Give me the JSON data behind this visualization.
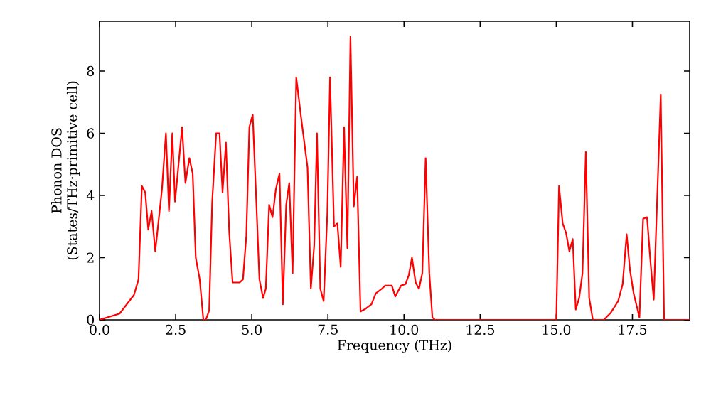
{
  "chart_data": {
    "type": "line",
    "xlabel": "Frequency (THz)",
    "ylabel": "Phonon DOS\n(States/THz·primitive cell)",
    "xlim": [
      0,
      19.38
    ],
    "ylim": [
      0,
      9.6
    ],
    "xticks": [
      {
        "value": 0,
        "label": "0.0"
      },
      2.5,
      {
        "value": 5,
        "label": "5.0"
      },
      7.5,
      {
        "value": 10,
        "label": "10.0"
      },
      12.5,
      {
        "value": 15,
        "label": "15.0"
      },
      17.5
    ],
    "yticks": [
      0,
      2,
      4,
      6,
      8
    ],
    "series": [
      {
        "color": "#ff0000",
        "x": [
          0,
          0.66,
          1.13,
          1.28,
          1.39,
          1.5,
          1.6,
          1.71,
          1.83,
          2.05,
          2.18,
          2.28,
          2.39,
          2.48,
          2.71,
          2.82,
          2.95,
          3.06,
          3.16,
          3.29,
          3.41,
          3.49,
          3.6,
          3.7,
          3.83,
          3.94,
          4.04,
          4.15,
          4.26,
          4.37,
          4.6,
          4.71,
          4.82,
          4.92,
          5.03,
          5.14,
          5.25,
          5.37,
          5.46,
          5.57,
          5.68,
          5.79,
          5.91,
          6.02,
          6.13,
          6.23,
          6.34,
          6.46,
          6.62,
          6.83,
          6.94,
          7.05,
          7.14,
          7.25,
          7.36,
          7.48,
          7.57,
          7.7,
          7.81,
          7.92,
          8.03,
          8.14,
          8.24,
          8.35,
          8.46,
          8.57,
          8.73,
          8.93,
          9.07,
          9.27,
          9.38,
          9.6,
          9.71,
          9.9,
          10.05,
          10.16,
          10.26,
          10.38,
          10.49,
          10.6,
          10.71,
          10.83,
          10.93,
          11.02,
          15.0,
          15.09,
          15.21,
          15.32,
          15.43,
          15.54,
          15.64,
          15.75,
          15.86,
          15.97,
          16.08,
          16.2,
          16.56,
          16.79,
          17.03,
          17.18,
          17.31,
          17.42,
          17.54,
          17.73,
          17.85,
          17.98,
          18.09,
          18.2,
          18.43,
          18.54,
          19.38
        ],
        "values": [
          0,
          0.2,
          0.8,
          1.3,
          4.3,
          4.1,
          2.9,
          3.5,
          2.2,
          4.2,
          6.0,
          3.5,
          6.0,
          3.8,
          6.2,
          4.4,
          5.2,
          4.7,
          2.0,
          1.3,
          0,
          0,
          0.3,
          3.8,
          6.0,
          6.0,
          4.1,
          5.7,
          2.8,
          1.2,
          1.2,
          1.3,
          2.7,
          6.2,
          6.6,
          4.0,
          1.3,
          0.7,
          1.0,
          3.7,
          3.3,
          4.2,
          4.7,
          0.5,
          3.7,
          4.4,
          1.5,
          7.8,
          6.5,
          4.9,
          1.0,
          2.4,
          6.0,
          1.0,
          0.6,
          3.4,
          7.8,
          3.0,
          3.1,
          1.7,
          6.2,
          2.3,
          9.1,
          3.65,
          4.6,
          0.27,
          0.35,
          0.5,
          0.85,
          1.0,
          1.1,
          1.1,
          0.75,
          1.1,
          1.15,
          1.45,
          2.0,
          1.2,
          1.0,
          1.5,
          5.2,
          1.5,
          0.08,
          0,
          0,
          4.3,
          3.1,
          2.8,
          2.2,
          2.6,
          0.33,
          0.7,
          1.5,
          5.4,
          0.7,
          0,
          0,
          0.23,
          0.6,
          1.15,
          2.75,
          1.6,
          0.85,
          0.08,
          3.25,
          3.3,
          1.9,
          0.65,
          7.25,
          0,
          0
        ]
      }
    ],
    "marker": "none",
    "line_style": "solid",
    "grid": false
  }
}
